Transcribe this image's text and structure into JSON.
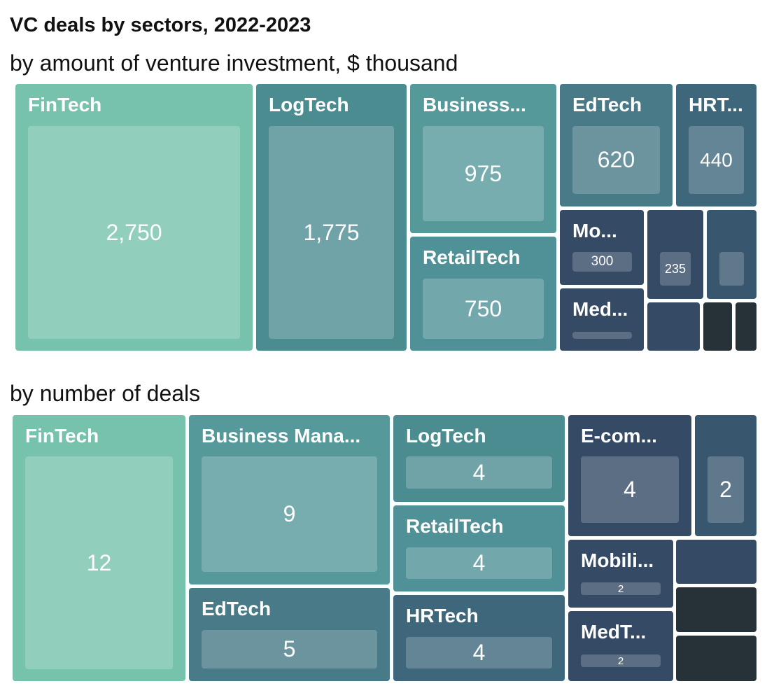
{
  "chart_data": [
    {
      "type": "treemap",
      "title": "VC deals by sectors, 2022-2023",
      "subtitle": "by amount of venture investment, $ thousand",
      "tiles": [
        {
          "label": "FinTech",
          "value": "2,750",
          "color": "#76c2ac"
        },
        {
          "label": "LogTech",
          "value": "1,775",
          "color": "#4b8c91"
        },
        {
          "label": "Business...",
          "value": "975",
          "color": "#56999b"
        },
        {
          "label": "RetailTech",
          "value": "750",
          "color": "#4f9196"
        },
        {
          "label": "EdTech",
          "value": "620",
          "color": "#487a87"
        },
        {
          "label": "HRT...",
          "value": "440",
          "color": "#3e677c"
        },
        {
          "label": "Mo...",
          "value": "300",
          "color": "#344a65"
        },
        {
          "label": "Med...",
          "value": "",
          "color": "#344a65"
        },
        {
          "label": "",
          "value": "235",
          "color": "#344a65"
        },
        {
          "label": "",
          "value": "",
          "color": "#38576f"
        },
        {
          "label": "",
          "value": "",
          "color": "#344a65"
        },
        {
          "label": "",
          "value": "",
          "color": "#263238"
        },
        {
          "label": "",
          "value": "",
          "color": "#263238"
        }
      ]
    },
    {
      "type": "treemap",
      "subtitle": "by number of deals",
      "tiles": [
        {
          "label": "FinTech",
          "value": "12",
          "color": "#76c2ac"
        },
        {
          "label": "Business Mana...",
          "value": "9",
          "color": "#56999b"
        },
        {
          "label": "EdTech",
          "value": "5",
          "color": "#487a87"
        },
        {
          "label": "LogTech",
          "value": "4",
          "color": "#4b8c91"
        },
        {
          "label": "RetailTech",
          "value": "4",
          "color": "#4f9196"
        },
        {
          "label": "HRTech",
          "value": "4",
          "color": "#3e677c"
        },
        {
          "label": "E-com...",
          "value": "4",
          "color": "#344a65"
        },
        {
          "label": "",
          "value": "2",
          "color": "#38576f"
        },
        {
          "label": "Mobili...",
          "value": "2",
          "color": "#344a65"
        },
        {
          "label": "MedT...",
          "value": "2",
          "color": "#344a65"
        },
        {
          "label": "",
          "value": "",
          "color": "#344a65"
        },
        {
          "label": "",
          "value": "",
          "color": "#263238"
        },
        {
          "label": "",
          "value": "",
          "color": "#263238"
        }
      ]
    }
  ]
}
